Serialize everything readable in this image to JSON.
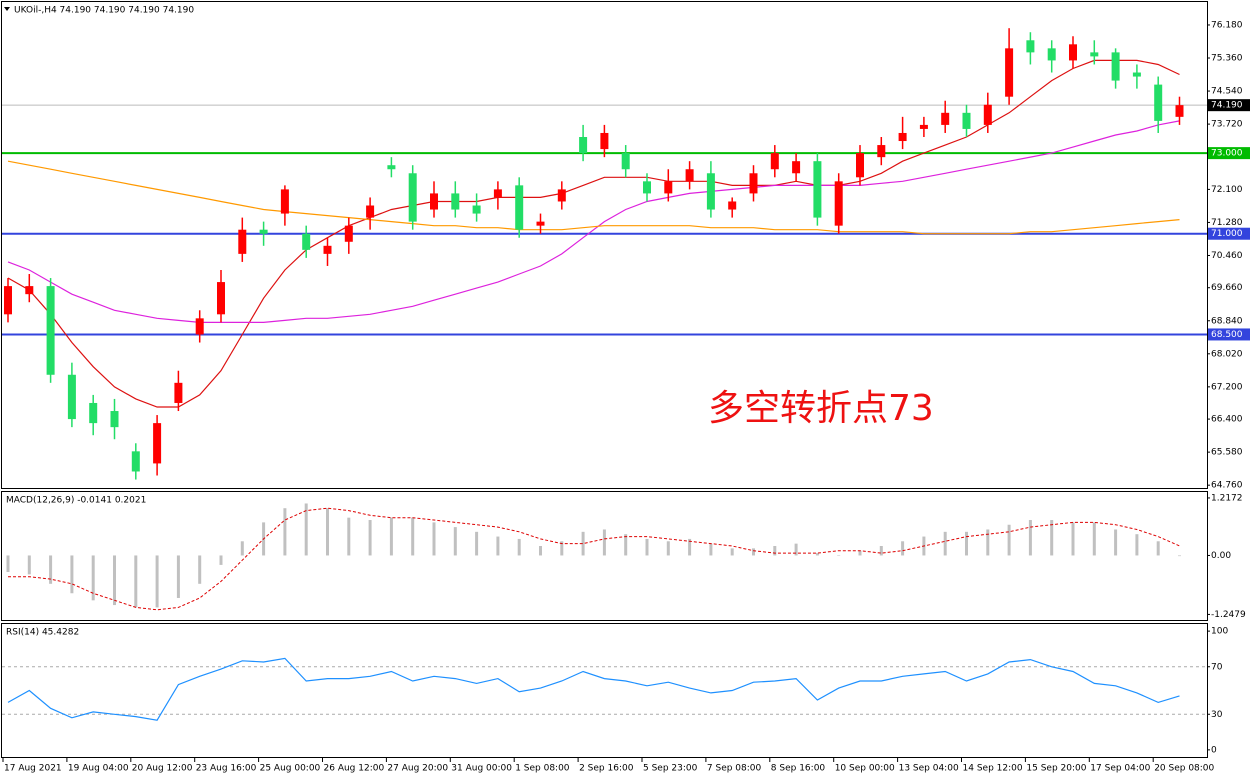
{
  "chart_data": [
    {
      "type": "candlestick",
      "title": "UKOil-,H4 74.190 74.190 74.190 74.190",
      "categories": [
        "17 Aug 2021",
        null,
        null,
        "19 Aug 04:00",
        null,
        null,
        "20 Aug 12:00",
        null,
        null,
        "23 Aug 16:00",
        null,
        null,
        "25 Aug 00:00",
        null,
        null,
        "26 Aug 12:00",
        null,
        null,
        "27 Aug 20:00",
        null,
        null,
        "31 Aug 00:00",
        null,
        null,
        "1 Sep 08:00",
        null,
        null,
        "2 Sep 16:00",
        null,
        null,
        "5 Sep 23:00",
        null,
        null,
        "7 Sep 08:00",
        null,
        null,
        "8 Sep 16:00",
        null,
        null,
        "10 Sep 00:00",
        null,
        null,
        "13 Sep 04:00",
        null,
        null,
        "14 Sep 12:00",
        null,
        null,
        "15 Sep 20:00",
        null,
        null,
        "17 Sep 04:00",
        null,
        null,
        "20 Sep 08:00",
        null
      ],
      "open": [
        69.0,
        69.5,
        69.7,
        67.5,
        66.8,
        66.6,
        65.6,
        65.3,
        66.8,
        68.5,
        69.0,
        70.5,
        71.1,
        71.5,
        71.0,
        70.5,
        70.8,
        71.4,
        72.7,
        72.5,
        71.6,
        72.0,
        71.7,
        71.9,
        72.2,
        71.2,
        71.8,
        73.4,
        73.1,
        73.0,
        72.3,
        72.0,
        72.3,
        72.5,
        71.6,
        72.0,
        72.6,
        72.5,
        72.8,
        71.2,
        72.4,
        72.9,
        73.3,
        73.6,
        73.7,
        74.0,
        73.7,
        74.4,
        75.8,
        75.6,
        75.3,
        75.5,
        75.5,
        75.0,
        74.7,
        73.9
      ],
      "high": [
        69.9,
        70.0,
        69.9,
        67.8,
        67.0,
        66.9,
        65.8,
        66.5,
        67.6,
        69.1,
        70.1,
        71.4,
        71.3,
        72.2,
        71.2,
        70.9,
        71.4,
        71.9,
        72.9,
        72.7,
        72.3,
        72.3,
        72.0,
        72.3,
        72.4,
        71.5,
        72.3,
        73.7,
        73.7,
        73.2,
        72.5,
        72.6,
        72.8,
        72.8,
        71.9,
        72.7,
        73.2,
        73.0,
        73.0,
        72.5,
        73.2,
        73.4,
        73.9,
        73.9,
        74.3,
        74.2,
        74.5,
        76.1,
        76.0,
        75.8,
        75.9,
        75.8,
        75.6,
        75.2,
        74.9,
        74.4
      ],
      "low": [
        68.8,
        69.3,
        67.3,
        66.2,
        66.0,
        65.9,
        64.9,
        65.0,
        66.6,
        68.3,
        68.8,
        70.3,
        70.7,
        71.2,
        70.4,
        70.2,
        70.5,
        71.1,
        72.4,
        71.1,
        71.4,
        71.4,
        71.3,
        71.6,
        70.9,
        71.0,
        71.6,
        72.8,
        72.9,
        72.4,
        71.8,
        71.8,
        72.1,
        71.4,
        71.4,
        71.8,
        72.4,
        72.3,
        71.2,
        71.0,
        72.2,
        72.7,
        73.1,
        73.4,
        73.5,
        73.4,
        73.5,
        74.2,
        75.2,
        75.0,
        75.1,
        75.2,
        74.6,
        74.6,
        73.5,
        73.7
      ],
      "close": [
        69.7,
        69.7,
        67.5,
        66.4,
        66.3,
        66.2,
        65.1,
        66.3,
        67.3,
        68.9,
        69.8,
        71.1,
        71.0,
        72.1,
        70.6,
        70.7,
        71.2,
        71.7,
        72.6,
        71.3,
        72.0,
        71.6,
        71.5,
        72.1,
        71.1,
        71.3,
        72.1,
        73.0,
        73.5,
        72.6,
        72.0,
        72.3,
        72.6,
        71.6,
        71.8,
        72.5,
        73.0,
        72.8,
        71.4,
        72.3,
        73.0,
        73.2,
        73.5,
        73.7,
        74.0,
        73.6,
        74.2,
        75.6,
        75.5,
        75.3,
        75.7,
        75.4,
        74.8,
        74.9,
        73.8,
        74.19
      ],
      "up_color": "#ff0000",
      "down_color": "#22dd66",
      "overlays": [
        {
          "color": "#dd1111",
          "values": [
            69.9,
            69.6,
            69.0,
            68.3,
            67.7,
            67.2,
            66.9,
            66.7,
            66.7,
            67.0,
            67.6,
            68.5,
            69.4,
            70.1,
            70.6,
            70.9,
            71.2,
            71.4,
            71.6,
            71.7,
            71.8,
            71.8,
            71.8,
            71.9,
            71.9,
            71.9,
            72.0,
            72.2,
            72.4,
            72.4,
            72.4,
            72.3,
            72.3,
            72.3,
            72.2,
            72.2,
            72.2,
            72.3,
            72.2,
            72.2,
            72.3,
            72.5,
            72.8,
            73.0,
            73.2,
            73.4,
            73.7,
            74.0,
            74.4,
            74.8,
            75.1,
            75.3,
            75.3,
            75.3,
            75.2,
            74.95
          ]
        },
        {
          "color": "#dd22dd",
          "values": [
            70.3,
            70.1,
            69.8,
            69.5,
            69.3,
            69.1,
            69.0,
            68.9,
            68.85,
            68.8,
            68.8,
            68.8,
            68.8,
            68.85,
            68.9,
            68.9,
            68.95,
            69.0,
            69.1,
            69.2,
            69.35,
            69.5,
            69.65,
            69.8,
            70.0,
            70.2,
            70.5,
            70.9,
            71.3,
            71.6,
            71.8,
            71.9,
            72.0,
            72.05,
            72.1,
            72.15,
            72.2,
            72.2,
            72.2,
            72.2,
            72.2,
            72.25,
            72.3,
            72.4,
            72.5,
            72.6,
            72.7,
            72.8,
            72.9,
            73.0,
            73.15,
            73.3,
            73.45,
            73.55,
            73.7,
            73.8
          ]
        },
        {
          "color": "#ff9900",
          "values": [
            72.8,
            72.7,
            72.6,
            72.5,
            72.4,
            72.3,
            72.2,
            72.1,
            72.0,
            71.9,
            71.8,
            71.7,
            71.6,
            71.55,
            71.5,
            71.45,
            71.4,
            71.35,
            71.3,
            71.25,
            71.2,
            71.2,
            71.15,
            71.15,
            71.1,
            71.1,
            71.1,
            71.15,
            71.2,
            71.2,
            71.2,
            71.2,
            71.2,
            71.15,
            71.15,
            71.15,
            71.1,
            71.1,
            71.1,
            71.05,
            71.05,
            71.05,
            71.05,
            71.0,
            71.0,
            71.0,
            71.0,
            71.0,
            71.05,
            71.05,
            71.1,
            71.15,
            71.2,
            71.25,
            71.3,
            71.35
          ]
        }
      ],
      "hlines": [
        {
          "value": 73.0,
          "label": "73.000",
          "color": "#00bb00"
        },
        {
          "value": 71.0,
          "label": "71.000",
          "color": "#3344dd"
        },
        {
          "value": 68.5,
          "label": "68.500",
          "color": "#3344dd"
        }
      ],
      "last": {
        "value": 74.19,
        "label": "74.190"
      },
      "annotation": "多空转折点73",
      "ylim": [
        64.69,
        76.75
      ],
      "yticks": [
        {
          "value": 76.18,
          "label": "76.180"
        },
        {
          "value": 75.36,
          "label": "75.360"
        },
        {
          "value": 74.54,
          "label": "74.540"
        },
        {
          "value": 73.72,
          "label": "73.720"
        },
        {
          "value": 72.1,
          "label": "72.100"
        },
        {
          "value": 71.28,
          "label": "71.280"
        },
        {
          "value": 70.46,
          "label": "70.460"
        },
        {
          "value": 69.66,
          "label": "69.660"
        },
        {
          "value": 68.84,
          "label": "68.840"
        },
        {
          "value": 68.02,
          "label": "68.020"
        },
        {
          "value": 67.2,
          "label": "67.200"
        },
        {
          "value": 66.4,
          "label": "66.400"
        },
        {
          "value": 65.58,
          "label": "65.580"
        },
        {
          "value": 64.76,
          "label": "64.760"
        }
      ]
    },
    {
      "type": "macd",
      "title": "MACD(12,26,9) -0.0141 0.2021",
      "histogram": [
        -0.35,
        -0.4,
        -0.6,
        -0.8,
        -0.95,
        -1.05,
        -1.1,
        -1.1,
        -0.9,
        -0.6,
        -0.2,
        0.3,
        0.7,
        1.0,
        1.1,
        1.0,
        0.8,
        0.75,
        0.8,
        0.8,
        0.7,
        0.6,
        0.5,
        0.4,
        0.35,
        0.2,
        0.3,
        0.5,
        0.55,
        0.45,
        0.35,
        0.3,
        0.35,
        0.25,
        0.15,
        0.15,
        0.2,
        0.25,
        0.05,
        0.0,
        0.1,
        0.2,
        0.3,
        0.4,
        0.5,
        0.5,
        0.55,
        0.65,
        0.75,
        0.75,
        0.7,
        0.7,
        0.55,
        0.45,
        0.3,
        -0.0141
      ],
      "signal": [
        -0.45,
        -0.45,
        -0.5,
        -0.6,
        -0.8,
        -0.95,
        -1.1,
        -1.15,
        -1.1,
        -0.9,
        -0.55,
        -0.1,
        0.35,
        0.75,
        0.95,
        1.0,
        0.95,
        0.85,
        0.8,
        0.8,
        0.75,
        0.7,
        0.65,
        0.6,
        0.5,
        0.35,
        0.25,
        0.25,
        0.35,
        0.4,
        0.4,
        0.35,
        0.3,
        0.25,
        0.2,
        0.1,
        0.05,
        0.05,
        0.05,
        0.1,
        0.1,
        0.05,
        0.1,
        0.2,
        0.3,
        0.4,
        0.45,
        0.5,
        0.6,
        0.65,
        0.7,
        0.7,
        0.65,
        0.55,
        0.4,
        0.2021
      ],
      "hist_color": "#c0c0c0",
      "signal_color": "#dd0000",
      "ylim": [
        -1.366,
        1.343
      ],
      "yticks": [
        1.2172,
        {
          "value": 0,
          "label": "0.00"
        },
        -1.2479
      ]
    },
    {
      "type": "rsi",
      "title": "RSI(14) 45.4282",
      "values": [
        40,
        50,
        35,
        27,
        32,
        30,
        28,
        25,
        55,
        62,
        68,
        75,
        74,
        77,
        58,
        60,
        60,
        62,
        66,
        58,
        62,
        60,
        56,
        60,
        49,
        52,
        58,
        66,
        60,
        58,
        54,
        57,
        52,
        48,
        50,
        57,
        58,
        60,
        42,
        52,
        58,
        58,
        62,
        64,
        66,
        58,
        64,
        74,
        76,
        70,
        66,
        56,
        54,
        48,
        40,
        45.4282
      ],
      "color": "#1e90ff",
      "levels": [
        70,
        30
      ],
      "ylim": [
        -6,
        106
      ],
      "yticks": [
        100,
        70,
        30,
        0
      ]
    }
  ]
}
